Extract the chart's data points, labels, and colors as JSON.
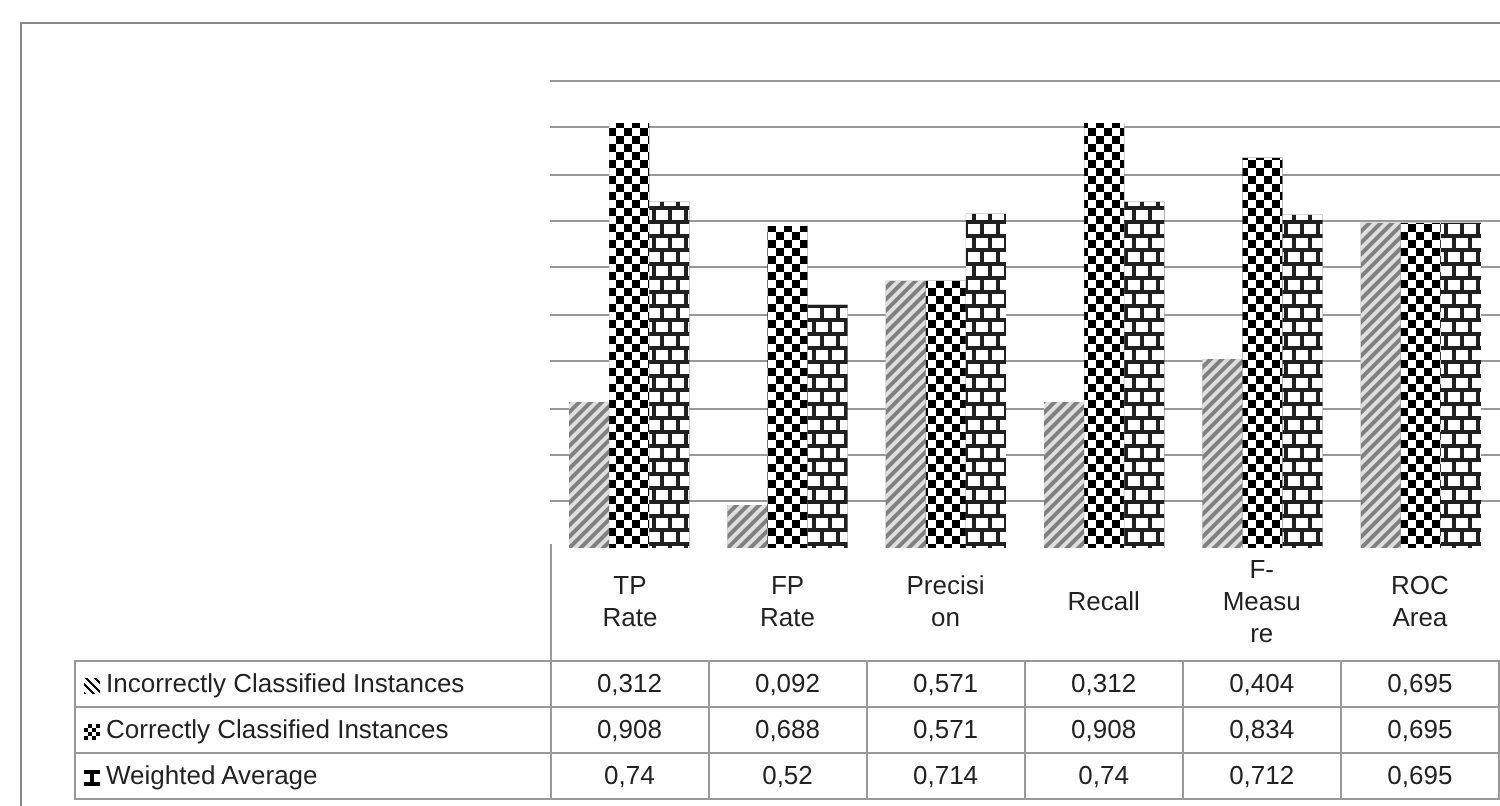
{
  "chart_data": {
    "type": "bar",
    "categories": [
      "TP Rate",
      "FP Rate",
      "Precision",
      "Recall",
      "F-Measure",
      "ROC Area"
    ],
    "series": [
      {
        "name": "Incorrectly Classified Instances",
        "color": "#808080",
        "values": [
          0.312,
          0.092,
          0.571,
          0.312,
          0.404,
          0.695
        ],
        "value_labels": [
          "0,312",
          "0,092",
          "0,571",
          "0,312",
          "0,404",
          "0,695"
        ]
      },
      {
        "name": "Correctly Classified Instances",
        "color": "#000000",
        "values": [
          0.908,
          0.688,
          0.571,
          0.908,
          0.834,
          0.695
        ],
        "value_labels": [
          "0,908",
          "0,688",
          "0,571",
          "0,908",
          "0,834",
          "0,695"
        ]
      },
      {
        "name": "Weighted Average",
        "color": "#202020",
        "values": [
          0.74,
          0.52,
          0.714,
          0.74,
          0.712,
          0.695
        ],
        "value_labels": [
          "0,74",
          "0,52",
          "0,714",
          "0,74",
          "0,712",
          "0,695"
        ]
      }
    ],
    "ylim": [
      0,
      1
    ],
    "grid": "y",
    "legend": "bottom left",
    "tick_labels": "x"
  }
}
